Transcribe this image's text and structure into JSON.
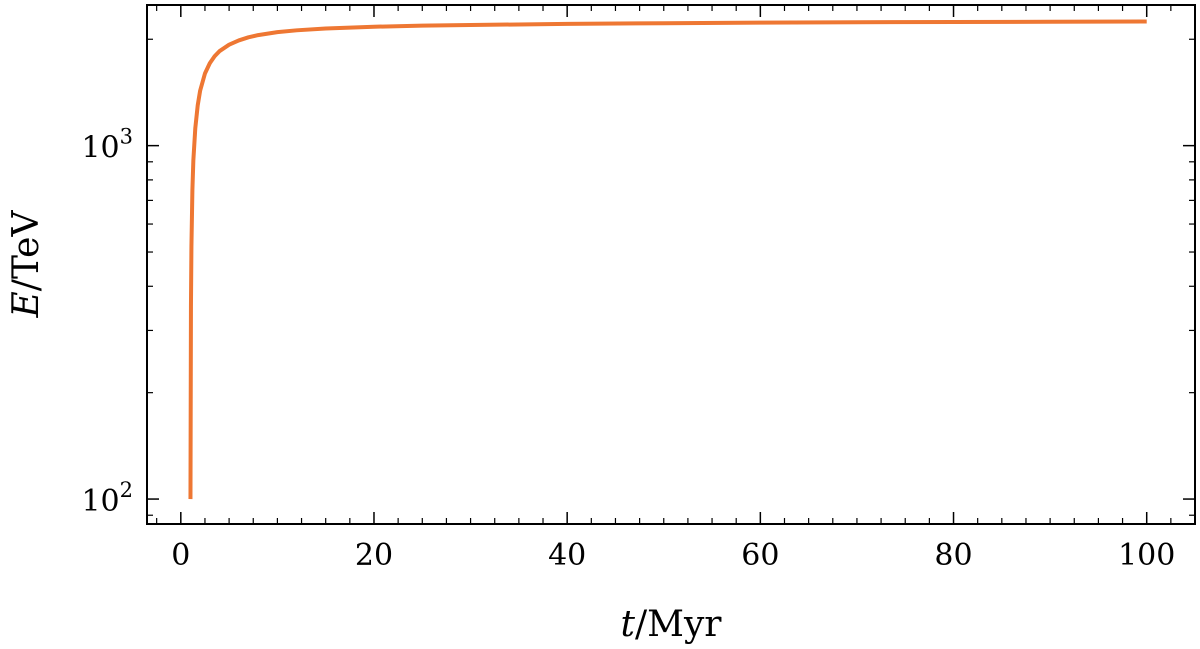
{
  "chart_data": {
    "type": "line",
    "title": "",
    "xlabel": {
      "symbol": "t",
      "unit": "/Myr"
    },
    "ylabel": {
      "symbol": "E",
      "unit": "/TeV"
    },
    "x_scale": "linear",
    "y_scale": "log",
    "xlim": [
      -3.5,
      105
    ],
    "ylim": [
      85,
      2500
    ],
    "x_ticks": [
      {
        "value": 0,
        "label": "0"
      },
      {
        "value": 20,
        "label": "20"
      },
      {
        "value": 40,
        "label": "40"
      },
      {
        "value": 60,
        "label": "60"
      },
      {
        "value": 80,
        "label": "80"
      },
      {
        "value": 100,
        "label": "100"
      }
    ],
    "y_ticks": [
      {
        "value": 100,
        "base": "10",
        "exp": "2"
      },
      {
        "value": 1000,
        "base": "10",
        "exp": "3"
      }
    ],
    "grid": false,
    "legend": "none",
    "series": [
      {
        "color": "#EE7733",
        "x": [
          1.0,
          1.05,
          1.1,
          1.2,
          1.3,
          1.5,
          1.75,
          2.0,
          2.5,
          3.0,
          3.5,
          4.0,
          5.0,
          6.0,
          7.0,
          8.0,
          10.0,
          12.0,
          15.0,
          20.0,
          25.0,
          30.0,
          40.0,
          50.0,
          60.0,
          70.0,
          80.0,
          90.0,
          100.0
        ],
        "y": [
          100,
          350,
          520,
          750,
          910,
          1120,
          1300,
          1430,
          1600,
          1710,
          1790,
          1850,
          1930,
          1985,
          2025,
          2055,
          2095,
          2120,
          2145,
          2170,
          2185,
          2195,
          2210,
          2220,
          2228,
          2234,
          2238,
          2242,
          2245
        ]
      }
    ]
  }
}
